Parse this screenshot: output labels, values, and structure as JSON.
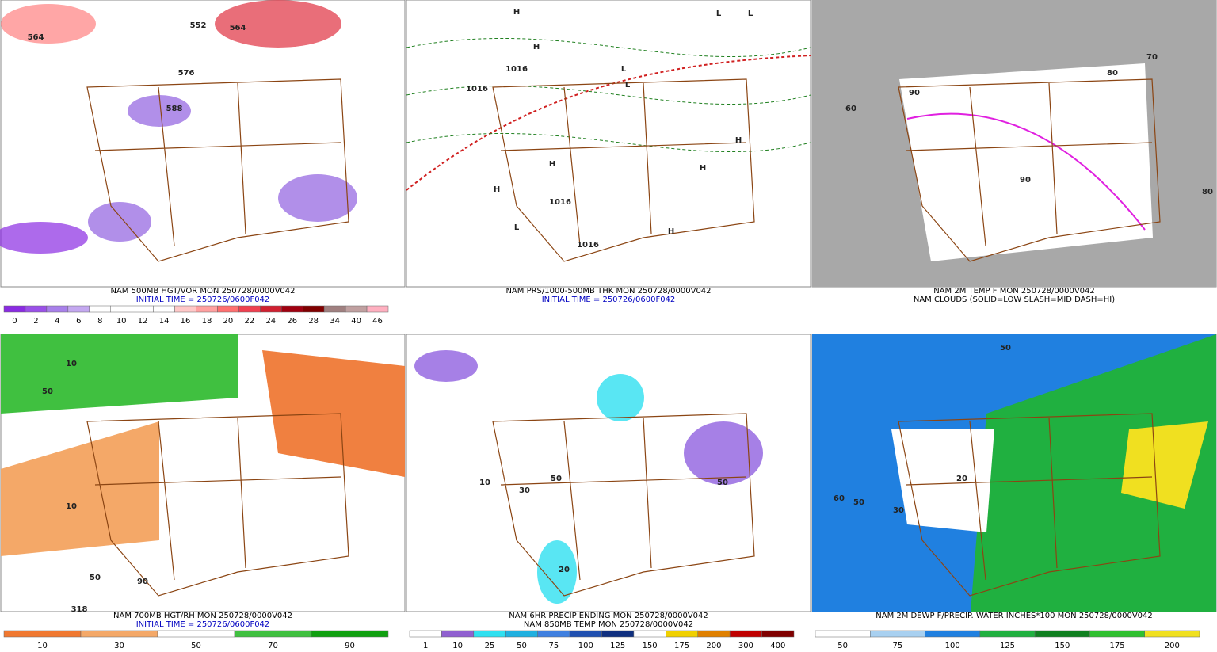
{
  "panels": [
    {
      "caption": [
        "NAM 500MB HGT/VOR MON 250728/0000V042",
        "INITIAL TIME = 250726/0600F042"
      ],
      "caption_colors": [
        "#000000",
        "#0000c0"
      ],
      "colorbar": {
        "labels": [
          "0",
          "2",
          "4",
          "6",
          "8",
          "10",
          "12",
          "14",
          "16",
          "18",
          "20",
          "22",
          "24",
          "26",
          "28",
          "34",
          "40",
          "46"
        ],
        "colors": [
          "#8a2be2",
          "#9a50e8",
          "#a880ea",
          "#c4a8f0",
          "#ffffff",
          "#ffffff",
          "#ffffff",
          "#ffffff",
          "#ffc8c8",
          "#ffa0a0",
          "#ff7070",
          "#f04050",
          "#d02030",
          "#a00010",
          "#800000",
          "#a08080",
          "#c0a0a0",
          "#ffb0c0"
        ]
      },
      "map_labels": [
        "564",
        "552",
        "564",
        "576",
        "588"
      ]
    },
    {
      "caption": [
        "NAM PRS/1000-500MB THK MON 250728/0000V042",
        "INITIAL TIME = 250726/0600F042"
      ],
      "caption_colors": [
        "#000000",
        "#0000c0"
      ],
      "map_labels": [
        "H",
        "L",
        "L",
        "H",
        "1016",
        "1016",
        "L",
        "L",
        "H",
        "H",
        "H",
        "1016",
        "H",
        "1016",
        "L",
        "H"
      ]
    },
    {
      "caption": [
        "NAM 2M TEMP F MON 250728/0000V042",
        "NAM CLOUDS (SOLID=LOW SLASH=MID DASH=HI)"
      ],
      "caption_colors": [
        "#000000",
        "#000000"
      ],
      "map_labels": [
        "60",
        "80",
        "90",
        "90",
        "80",
        "70"
      ]
    },
    {
      "caption": [
        "NAM 700MB HGT/RH MON 250728/0000V042",
        "INITIAL TIME = 250726/0600F042"
      ],
      "caption_colors": [
        "#000000",
        "#0000c0"
      ],
      "colorbar": {
        "labels": [
          "10",
          "30",
          "50",
          "70",
          "90"
        ],
        "colors": [
          "#f07830",
          "#f4a868",
          "#ffffff",
          "#40c040",
          "#10a010"
        ]
      },
      "map_labels": [
        "10",
        "50",
        "10",
        "50",
        "90",
        "318"
      ]
    },
    {
      "caption": [
        "NAM 6HR PRECIP ENDING MON 250728/0000V042",
        "NAM 850MB TEMP MON 250728/0000V042"
      ],
      "caption_colors": [
        "#000000",
        "#000000"
      ],
      "colorbar": {
        "labels": [
          "1",
          "10",
          "25",
          "50",
          "75",
          "100",
          "125",
          "150",
          "175",
          "200",
          "300",
          "400"
        ],
        "colors": [
          "#ffffff",
          "#9060d0",
          "#30e0f0",
          "#20b0e0",
          "#4080e0",
          "#2050b0",
          "#103080",
          "#ffffff",
          "#f0d000",
          "#e08000",
          "#c00000",
          "#800000"
        ]
      },
      "map_labels": [
        "50",
        "10",
        "30",
        "50",
        "20"
      ]
    },
    {
      "caption": [
        "NAM 2M DEWP F/PRECIP. WATER INCHES*100 MON 250728/0000V042"
      ],
      "caption_colors": [
        "#000000"
      ],
      "colorbar": {
        "labels": [
          "50",
          "75",
          "100",
          "125",
          "150",
          "175",
          "200"
        ],
        "colors": [
          "#ffffff",
          "#a8d0f0",
          "#2080e0",
          "#20b040",
          "#108020",
          "#30c030",
          "#f0e020"
        ]
      },
      "map_labels": [
        "50",
        "20",
        "30",
        "60",
        "50"
      ]
    }
  ]
}
